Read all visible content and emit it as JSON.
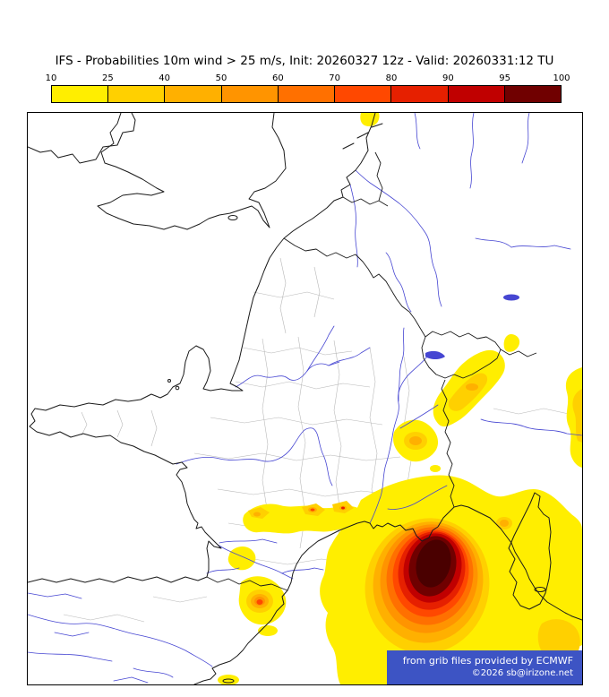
{
  "title": "IFS - Probabilities 10m wind > 25 m/s, Init: 20260327 12z - Valid: 20260331:12 TU",
  "legend": {
    "tick_labels": [
      "10",
      "25",
      "40",
      "50",
      "60",
      "70",
      "80",
      "90",
      "95",
      "100"
    ],
    "colors": [
      "#ffee00",
      "#ffd000",
      "#ffb000",
      "#ff9400",
      "#ff7000",
      "#ff4800",
      "#e62000",
      "#c00000",
      "#700000"
    ],
    "core_color": "#4a0000"
  },
  "map": {
    "coastline_color": "#1a1a1a",
    "river_color": "#4646d2",
    "admin_border_color": "#b9b9b9",
    "sea_land_color": "#ffffff"
  },
  "footer": {
    "line1": "from grib files provided by ECMWF",
    "line2": "©2026 sb@irizone.net",
    "background_color": "#3d54c4",
    "text_color": "#ffffff"
  }
}
